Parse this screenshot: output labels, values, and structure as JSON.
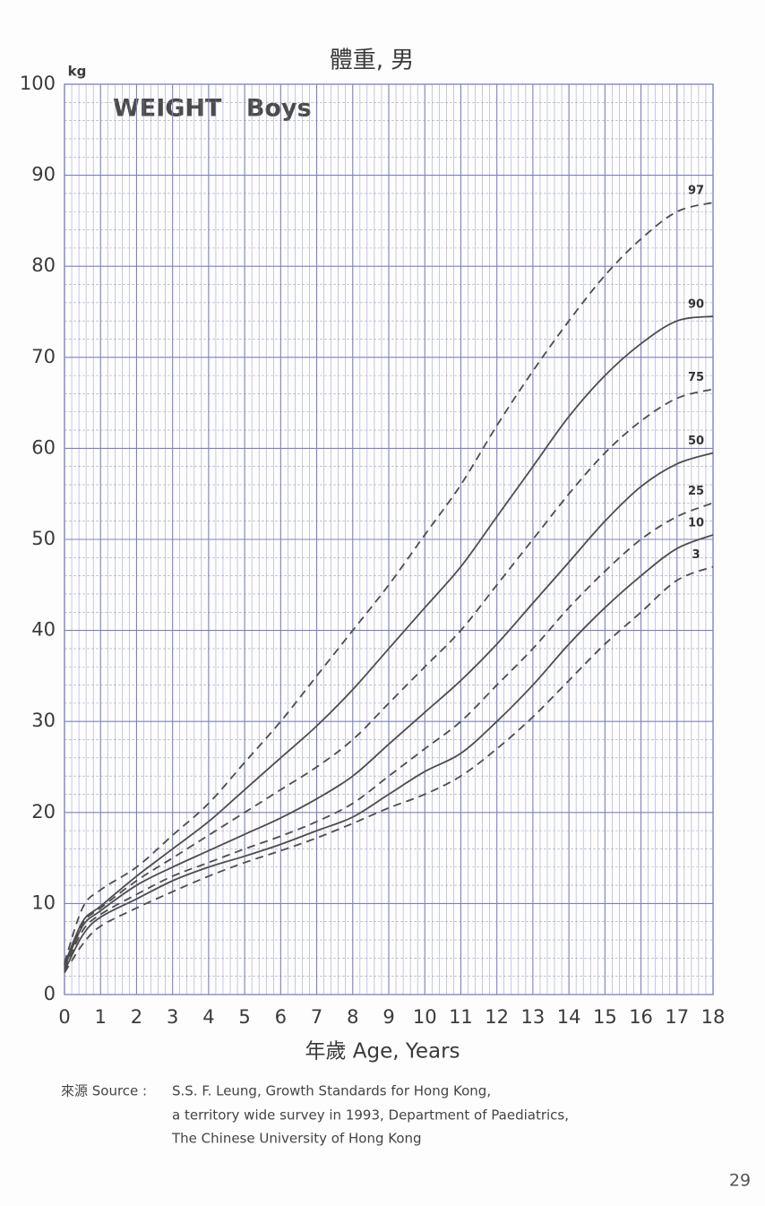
{
  "chart_data": {
    "type": "line",
    "title": "體重, 男",
    "ylabel": "kg",
    "annotation": "WEIGHT Boys",
    "xlabel": "年歲 Age, Years",
    "x": [
      0,
      0.5,
      1,
      2,
      3,
      4,
      5,
      6,
      7,
      8,
      9,
      10,
      11,
      12,
      13,
      14,
      15,
      16,
      17,
      18
    ],
    "series": [
      {
        "name": "97",
        "color": "#4d4d4d",
        "dashed": true,
        "values": [
          3.5,
          9.5,
          11.5,
          14,
          17.5,
          21,
          25.5,
          30,
          35,
          40,
          45,
          50.5,
          56,
          62.5,
          68.5,
          74,
          79,
          83,
          86,
          87
        ]
      },
      {
        "name": "90",
        "color": "#4d4d4d",
        "dashed": false,
        "values": [
          3.3,
          8,
          9.7,
          13,
          16,
          19,
          22.5,
          26,
          29.5,
          33.5,
          38,
          42.5,
          47,
          52.5,
          58,
          63.5,
          68,
          71.5,
          74,
          74.5
        ]
      },
      {
        "name": "75",
        "color": "#4d4d4d",
        "dashed": true,
        "values": [
          3.2,
          7.8,
          9.5,
          12.5,
          15,
          17.5,
          20,
          22.5,
          25,
          28,
          32,
          36,
          40,
          45,
          50,
          55,
          59.5,
          63,
          65.5,
          66.5
        ]
      },
      {
        "name": "50",
        "color": "#4d4d4d",
        "dashed": false,
        "values": [
          3,
          7.5,
          9.2,
          12,
          14,
          15.8,
          17.6,
          19.4,
          21.5,
          24,
          27.5,
          31,
          34.5,
          38.5,
          43,
          47.5,
          52,
          55.8,
          58.3,
          59.5
        ]
      },
      {
        "name": "25",
        "color": "#4d4d4d",
        "dashed": true,
        "values": [
          2.8,
          7,
          8.8,
          11,
          13,
          14.5,
          16,
          17.4,
          19,
          21,
          24,
          27,
          30,
          34,
          38,
          42.5,
          46.5,
          50,
          52.5,
          54
        ]
      },
      {
        "name": "10",
        "color": "#4d4d4d",
        "dashed": false,
        "values": [
          2.6,
          6.5,
          8.5,
          10.5,
          12.5,
          14,
          15.2,
          16.5,
          18,
          19.5,
          22,
          24.5,
          26.5,
          30,
          34,
          38.5,
          42.5,
          46,
          49,
          50.5
        ]
      },
      {
        "name": "3",
        "color": "#4d4d4d",
        "dashed": true,
        "values": [
          2.4,
          5.5,
          7.5,
          9.5,
          11.3,
          13,
          14.5,
          15.8,
          17.2,
          18.8,
          20.5,
          22,
          24,
          27,
          30.5,
          34.5,
          38.5,
          42,
          45.5,
          47
        ]
      }
    ],
    "xlim": [
      0,
      18
    ],
    "xticks": [
      0,
      1,
      2,
      3,
      4,
      5,
      6,
      7,
      8,
      9,
      10,
      11,
      12,
      13,
      14,
      15,
      16,
      17,
      18
    ],
    "ylim": [
      0,
      100
    ],
    "yticks": [
      0,
      10,
      20,
      30,
      40,
      50,
      60,
      70,
      80,
      90,
      100
    ],
    "grid": true,
    "grid_color": "#7c82b8"
  },
  "page": {
    "source_label": "來源 Source :",
    "source_lines": [
      "S.S. F. Leung, Growth Standards for Hong Kong,",
      "a territory wide survey in 1993, Department of Paediatrics,",
      "The Chinese University of Hong Kong"
    ],
    "page_number": "29"
  }
}
